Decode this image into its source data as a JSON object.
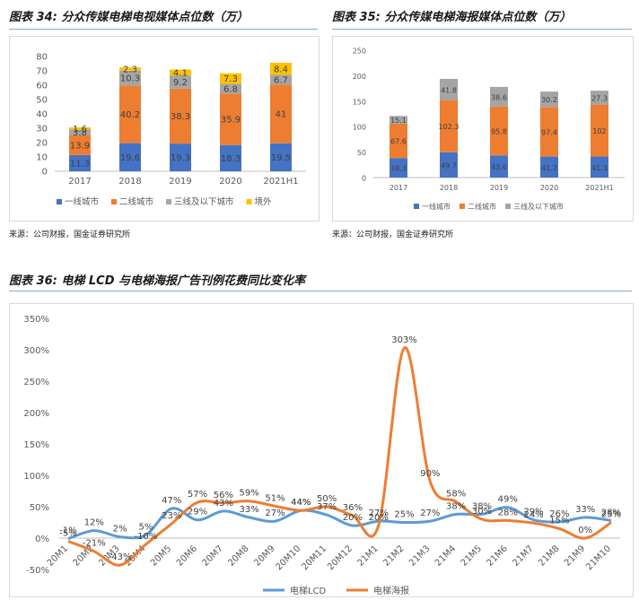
{
  "figures": [
    {
      "title": "图表 34:  分众传媒电梯电视媒体点位数（万）",
      "source": "来源：公司财报，国金证券研究所"
    },
    {
      "title": "图表 35:  分众传媒电梯海报媒体点位数（万）",
      "source": "来源：公司财报，国金证券研究所"
    },
    {
      "title": "图表 36:  电梯 LCD 与电梯海报广告刊例花费同比变化率",
      "source": ""
    }
  ],
  "chart_data": [
    {
      "type": "bar",
      "stacked": true,
      "categories": [
        "2017",
        "2018",
        "2019",
        "2020",
        "2021H1"
      ],
      "series": [
        {
          "name": "一线城市",
          "color": "#4472c4",
          "values": [
            11.3,
            19.6,
            19.3,
            18.3,
            19.5
          ]
        },
        {
          "name": "二线城市",
          "color": "#ed7d31",
          "values": [
            13.9,
            40.2,
            38.3,
            35.9,
            41
          ]
        },
        {
          "name": "三线及以下城市",
          "color": "#a5a5a5",
          "values": [
            3.8,
            10.3,
            9.2,
            6.8,
            6.7
          ]
        },
        {
          "name": "境外",
          "color": "#ffc000",
          "values": [
            1.6,
            2.3,
            4.1,
            7.3,
            8.4
          ]
        }
      ],
      "ylim": [
        0,
        80
      ],
      "yticks": [
        0,
        10,
        20,
        30,
        40,
        50,
        60,
        70,
        80
      ],
      "legend": "bottom",
      "grid": false
    },
    {
      "type": "bar",
      "stacked": true,
      "categories": [
        "2017",
        "2018",
        "2019",
        "2020",
        "2021H1"
      ],
      "series": [
        {
          "name": "一线城市",
          "color": "#4472c4",
          "values": [
            38.3,
            49.7,
            43.6,
            41.2,
            41.3
          ]
        },
        {
          "name": "二线城市",
          "color": "#ed7d31",
          "values": [
            67.6,
            102.3,
            95.8,
            97.4,
            102
          ]
        },
        {
          "name": "三线及以下城市",
          "color": "#a5a5a5",
          "values": [
            15.1,
            41.8,
            38.6,
            30.2,
            27.3
          ]
        }
      ],
      "ylim": [
        0,
        250
      ],
      "yticks": [
        0,
        50,
        100,
        150,
        200,
        250
      ],
      "legend": "bottom",
      "grid": false
    },
    {
      "type": "line",
      "categories": [
        "20M1",
        "20M2",
        "20M3",
        "20M4",
        "20M5",
        "20M6",
        "20M7",
        "20M8",
        "20M9",
        "20M10",
        "20M11",
        "20M12",
        "21M1",
        "21M2",
        "21M3",
        "21M4",
        "21M5",
        "21M6",
        "21M7",
        "21M8",
        "21M9",
        "21M10"
      ],
      "series": [
        {
          "name": "电梯LCD",
          "color": "#5b9bd5",
          "values": [
            -1,
            12,
            2,
            5,
            47,
            29,
            43,
            33,
            27,
            44,
            37,
            20,
            27,
            25,
            27,
            38,
            38,
            49,
            29,
            26,
            33,
            28
          ]
        },
        {
          "name": "电梯海报",
          "color": "#ed7d31",
          "values": [
            -5,
            -21,
            -43,
            -10,
            23,
            57,
            56,
            59,
            51,
            44,
            50,
            36,
            20,
            303,
            90,
            58,
            30,
            28,
            24,
            15,
            0,
            25
          ]
        }
      ],
      "ylim": [
        -50,
        350
      ],
      "yticks": [
        -50,
        0,
        50,
        100,
        150,
        200,
        250,
        300,
        350
      ],
      "y_tick_labels": [
        "-50%",
        "0%",
        "50%",
        "100%",
        "150%",
        "200%",
        "250%",
        "300%",
        "350%"
      ],
      "data_labels": [
        "-1%",
        "12%",
        "2%",
        "5%",
        "47%",
        "29%",
        "43%",
        "33%",
        "27%",
        "44%",
        "37%",
        "20%",
        "27%",
        "25%",
        "27%",
        "38%",
        "38%",
        "49%",
        "29%",
        "26%",
        "33%",
        "28%"
      ],
      "data_labels_2": [
        "-5%",
        "-21%",
        "-43%",
        "-10%",
        "23%",
        "57%",
        "56%",
        "59%",
        "51%",
        "44%",
        "50%",
        "36%",
        "20%",
        "303%",
        "90%",
        "58%",
        "30%",
        "28%",
        "24%",
        "15%",
        "0%",
        "25%"
      ],
      "legend": "bottom",
      "grid": false
    }
  ]
}
